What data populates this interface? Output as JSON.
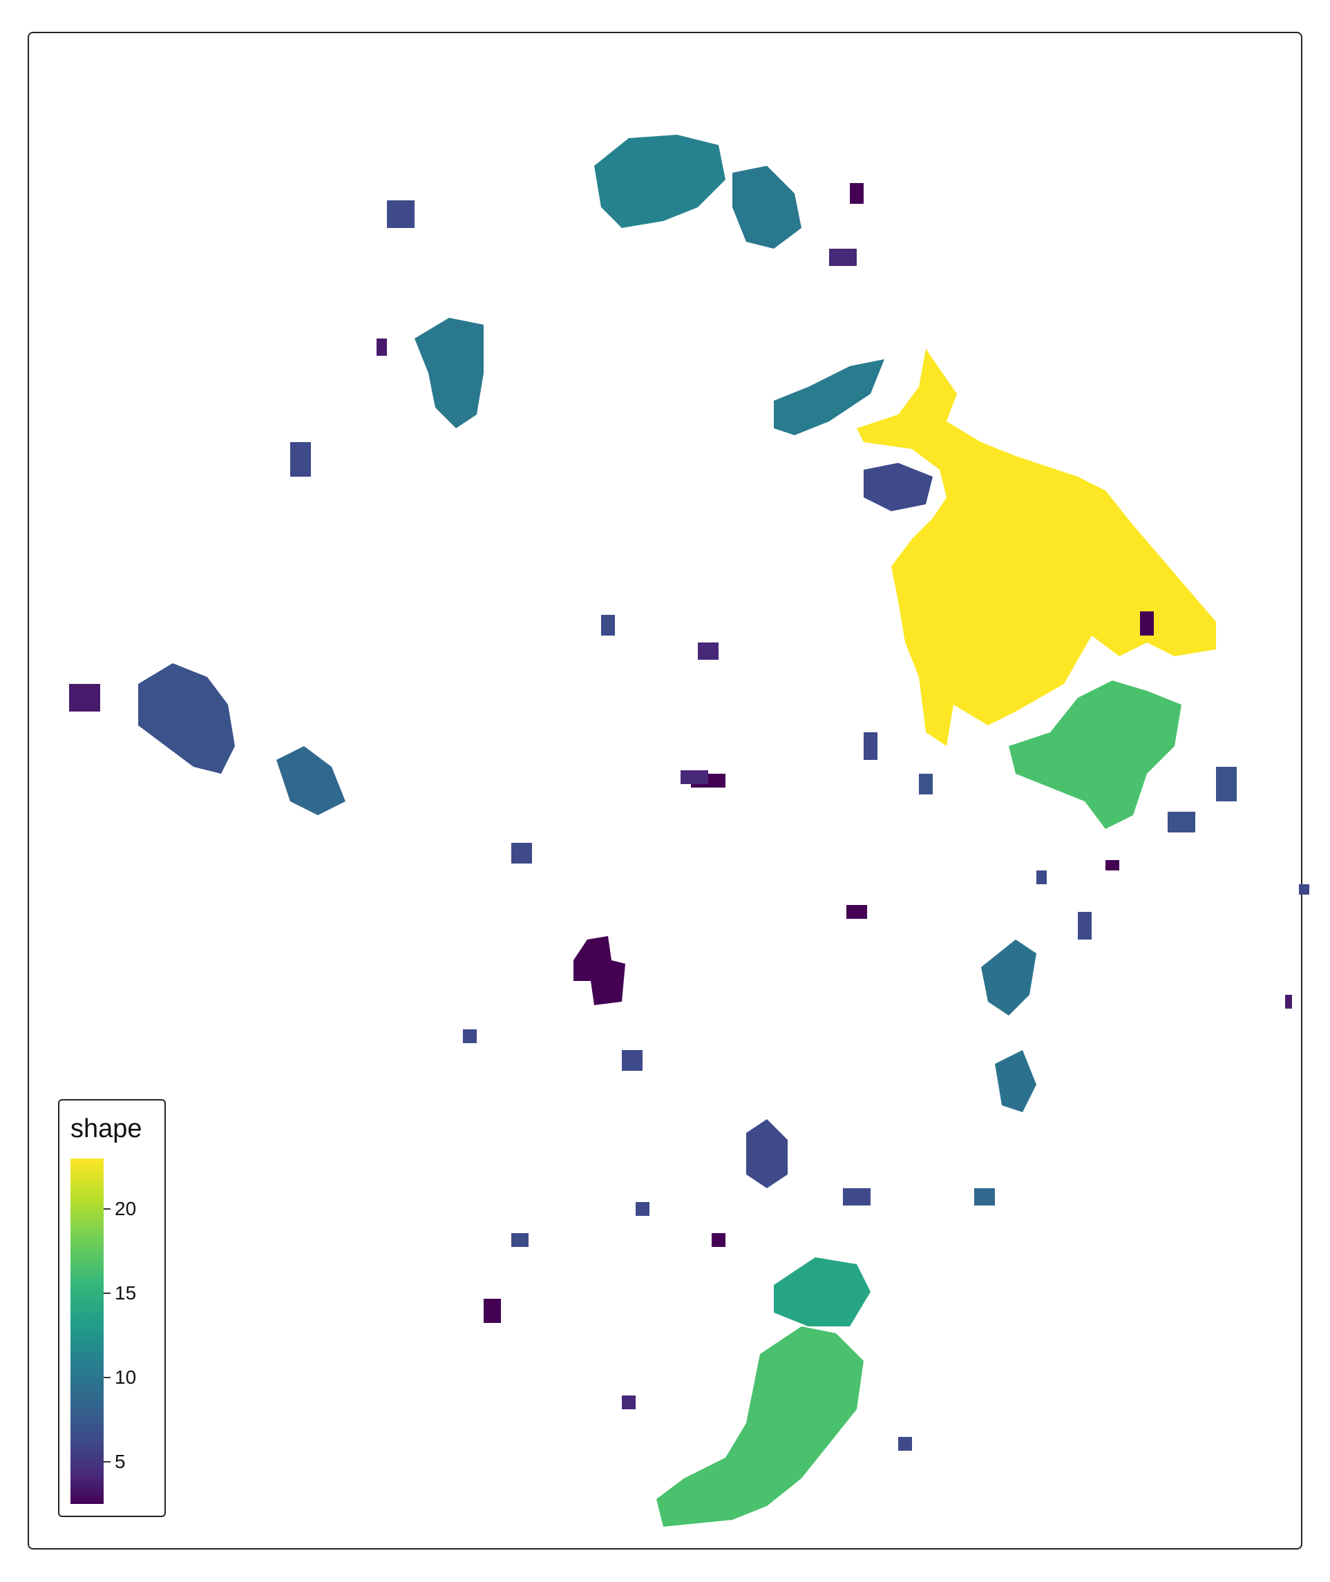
{
  "legend": {
    "title": "shape",
    "ticks": [
      {
        "label": "20",
        "value": 20
      },
      {
        "label": "15",
        "value": 15
      },
      {
        "label": "10",
        "value": 10
      },
      {
        "label": "5",
        "value": 5
      }
    ],
    "min": 2.5,
    "max": 23
  },
  "colors": {
    "v_low": "#440154",
    "v_purple": "#3e2a75",
    "v_navy": "#3e4a89",
    "v_blue": "#31688e",
    "v_teal": "#26828e",
    "v_green": "#3dbb74",
    "v_yellow": "#fde725"
  }
}
